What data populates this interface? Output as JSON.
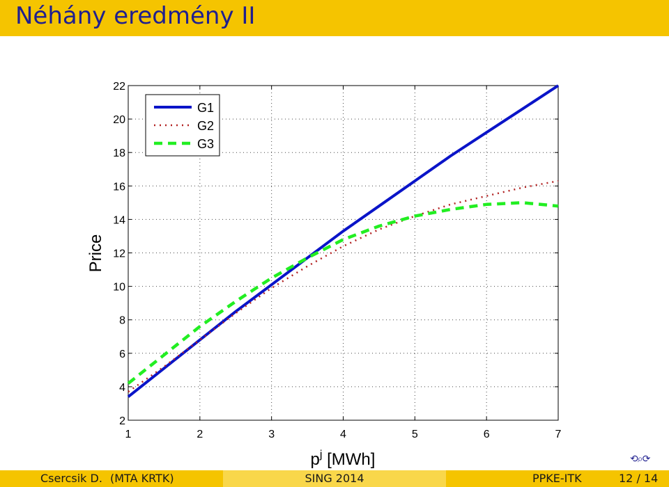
{
  "slide": {
    "title": "Néhány eredmény II"
  },
  "footer": {
    "author": "Csercsik D.",
    "affiliation": "(MTA KRTK)",
    "event": "SING 2014",
    "institution": "PPKE-ITK",
    "page": "12 / 14"
  },
  "nav_icon": "navigation-symbols-icon",
  "chart_data": {
    "type": "line",
    "xlabel_base": "p",
    "xlabel_sup": "j",
    "xlabel_unit": "[MWh]",
    "ylabel": "Price",
    "xlim": [
      1,
      7
    ],
    "ylim": [
      2,
      22
    ],
    "xticks": [
      1,
      2,
      3,
      4,
      5,
      6,
      7
    ],
    "yticks": [
      2,
      4,
      6,
      8,
      10,
      12,
      14,
      16,
      18,
      20,
      22
    ],
    "grid": true,
    "legend_position": "top-left",
    "x": [
      1,
      1.5,
      2,
      2.5,
      3,
      3.5,
      4,
      4.5,
      5,
      5.5,
      6,
      6.5,
      7
    ],
    "series": [
      {
        "name": "G1",
        "style": "solid",
        "color": "#0a14c8",
        "values": [
          3.4,
          5.1,
          6.8,
          8.5,
          10.1,
          11.7,
          13.3,
          14.8,
          16.3,
          17.8,
          19.2,
          20.6,
          22.0
        ]
      },
      {
        "name": "G2",
        "style": "dotted",
        "color": "#b22222",
        "values": [
          3.7,
          5.2,
          6.8,
          8.4,
          9.9,
          11.2,
          12.4,
          13.4,
          14.2,
          14.9,
          15.4,
          15.9,
          16.3
        ]
      },
      {
        "name": "G3",
        "style": "dashed",
        "color": "#22ee22",
        "values": [
          4.2,
          5.9,
          7.6,
          9.1,
          10.5,
          11.7,
          12.8,
          13.6,
          14.2,
          14.6,
          14.9,
          15.0,
          14.8
        ]
      }
    ]
  }
}
